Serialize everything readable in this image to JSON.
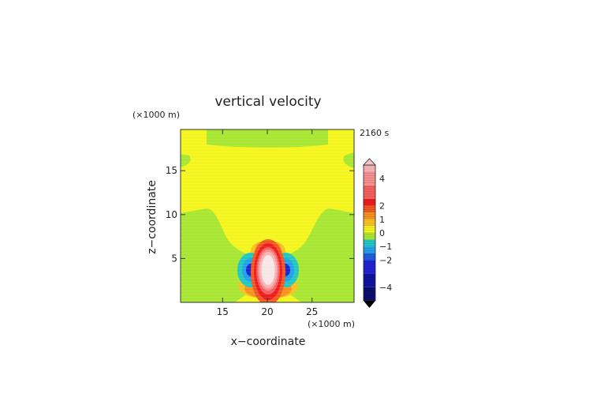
{
  "chart_data": {
    "type": "heatmap",
    "title": "vertical velocity",
    "time_label": "2160 s",
    "xlabel": "x−coordinate",
    "ylabel": "z−coordinate",
    "x_unit": "(×1000 m)",
    "y_unit": "(×1000 m)",
    "xlim": [
      10.3,
      29.7
    ],
    "ylim": [
      0,
      19.7
    ],
    "xticks": [
      15,
      20,
      25
    ],
    "yticks": [
      5,
      10,
      15
    ],
    "colorbar": {
      "tick_values": [
        4,
        2,
        1,
        0,
        -1,
        -2,
        -4
      ],
      "tick_labels": [
        "4",
        "2",
        "1",
        "0",
        "−1",
        "−2",
        "−4"
      ],
      "range": [
        -5,
        5
      ],
      "levels": [
        {
          "min": 4.5,
          "max": 5,
          "color": "#f6b6b8"
        },
        {
          "min": 3.5,
          "max": 4.5,
          "color": "#f59090"
        },
        {
          "min": 2.5,
          "max": 3.5,
          "color": "#f46060"
        },
        {
          "min": 2,
          "max": 2.5,
          "color": "#ee1c1c"
        },
        {
          "min": 1.5,
          "max": 2,
          "color": "#f05a22"
        },
        {
          "min": 1,
          "max": 1.5,
          "color": "#f5921e"
        },
        {
          "min": 0.5,
          "max": 1,
          "color": "#f8c223"
        },
        {
          "min": 0,
          "max": 0.5,
          "color": "#f5f51e"
        },
        {
          "min": -0.5,
          "max": 0,
          "color": "#a8e632"
        },
        {
          "min": -1,
          "max": -0.5,
          "color": "#22c7c2"
        },
        {
          "min": -1.5,
          "max": -1,
          "color": "#21a0e8"
        },
        {
          "min": -2,
          "max": -1.5,
          "color": "#1e5fe0"
        },
        {
          "min": -3,
          "max": -2,
          "color": "#1e24d2"
        },
        {
          "min": -4,
          "max": -3,
          "color": "#0f149e"
        },
        {
          "min": -5,
          "max": -4,
          "color": "#0b0e6e"
        }
      ],
      "over_color": "#f6c6c6",
      "under_color": "#000000"
    }
  }
}
